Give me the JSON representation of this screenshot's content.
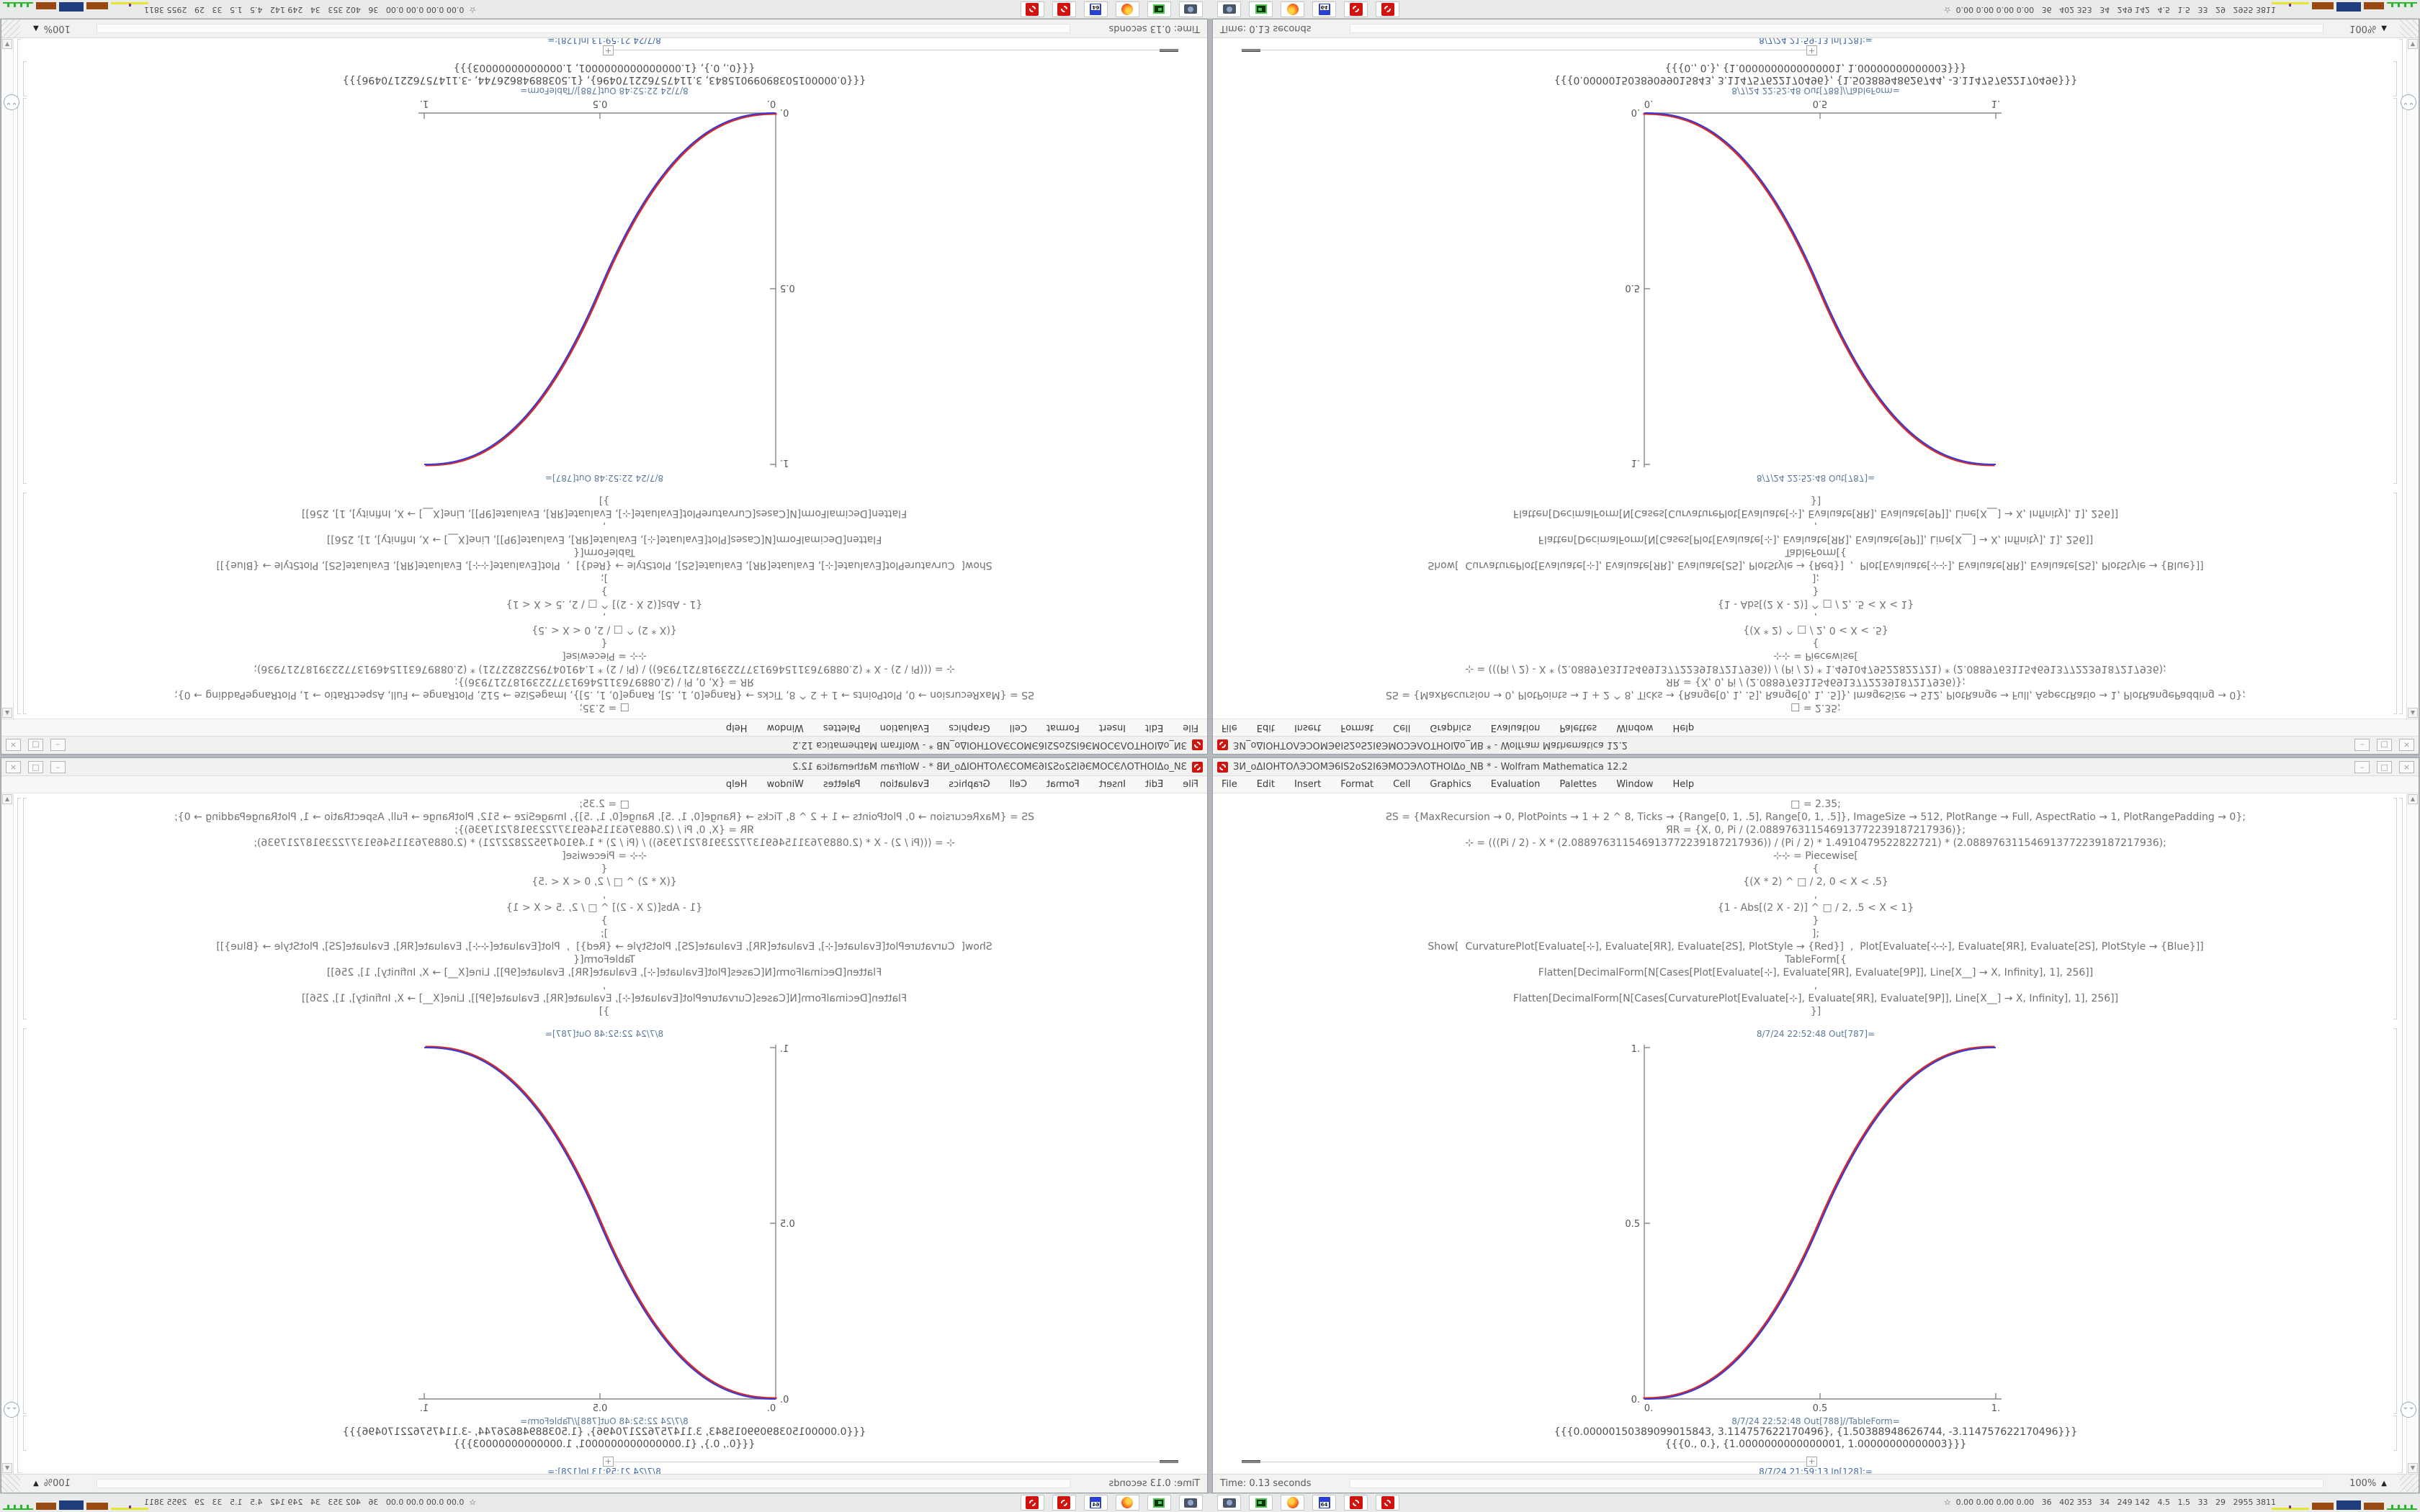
{
  "window": {
    "title": "ЗИ_оΔIOHTOΛЭƆOMЭ6IS2оS2I6ЭMOƆЭΛOTHOIΔо_NB * - Wolfram Mathematica 12.2",
    "window_buttons": {
      "minimize": "–",
      "maximize": "□",
      "close": "×"
    },
    "menu": [
      "File",
      "Edit",
      "Insert",
      "Format",
      "Cell",
      "Graphics",
      "Evaluation",
      "Palettes",
      "Window",
      "Help"
    ],
    "code_lines": [
      "□ = 2.35;",
      "ƧS = {MaxRecursion → 0, PlotPoints → 1 + 2 ^ 8, Ticks → {Range[0, 1, .5], Range[0, 1, .5]}, ImageSize → 512, PlotRange → Full, AspectRatio → 1, PlotRangePadding → 0};",
      "ЯR = {X, 0, Pi / (2.088976311546913772239187217936)};",
      "⊹ = (((Pi / 2) - X * (2.088976311546913772239187217936)) / (Pi / 2) * 1.4910479522822721) * (2.088976311546913772239187217936);",
      "⊹⊹ = Piecewise[",
      "{",
      "{(X * 2) ^ □ / 2, 0 < X < .5}",
      ",",
      "{1 - Abs[(2 X - 2)] ^ □ / 2, .5 < X < 1}",
      "}",
      "];",
      "Show[  CurvaturePlot[Evaluate[⊹], Evaluate[ЯR], Evaluate[ƧS], PlotStyle → {Red}]  ,  Plot[Evaluate[⊹⊹], Evaluate[ЯR], Evaluate[ƧS], PlotStyle → {Blue}]]",
      "TableForm[{",
      "Flatten[DecimalForm[N[Cases[Plot[Evaluate[⊹], Evaluate[ЯR], Evaluate[9P]], Line[X__] → X, Infinity], 1], 256]]",
      ",",
      "Flatten[DecimalForm[N[Cases[CurvaturePlot[Evaluate[⊹], Evaluate[ЯR], Evaluate[9P]], Line[X__] → X, Infinity], 1], 256]]",
      "}]"
    ],
    "out_label_plot": "8/7/24 22:52:48 Out[787]=",
    "out_label_table": "8/7/24 22:52:48 Out[788]//TableForm=",
    "out_rows": [
      "{{{0.00000150389099015843, 3.114757622170496}, {1.50388948626744, -3.114757622170496}}}",
      "{{{0., 0.}, {1.0000000000000001, 1.00000000000003}}}"
    ],
    "insert_plus": "+",
    "in_label": "8/7/24 21:59:13 In[128]:=",
    "status_time": "Time: 0.13 seconds",
    "zoom_level": "100%",
    "scroll_up_glyph": "▲",
    "scroll_down_glyph": "▼",
    "na_button_glyph": "⌄⌄",
    "zoom_tri_glyph": "▲"
  },
  "taskbar": {
    "stats": "☆  0.00 0.00 0.00 0.00   36   402 353   34   249 142   4.5   1.5   33   29   2955 3811",
    "floppy_label": "64",
    "icons": [
      "camera-icon",
      "monitor-icon",
      "firefox-icon",
      "floppy64-icon",
      "gear-icon",
      "gear-icon"
    ]
  },
  "chart_data": {
    "type": "line",
    "title": "",
    "xlabel": "",
    "ylabel": "",
    "xlim": [
      0,
      1
    ],
    "ylim": [
      0,
      1
    ],
    "grid": false,
    "legend_position": "none",
    "xtick_labels": [
      "0.",
      "0.5",
      "1."
    ],
    "ytick_labels": [
      "0.",
      "0.5",
      "1."
    ],
    "exponent": 2.35,
    "function": "y = (2x)^2.35 / 2 for 0 < x < 0.5 ; y = 1 - |2x-2|^2.35 / 2 for 0.5 < x < 1",
    "x": [
      0,
      0.1,
      0.2,
      0.3,
      0.4,
      0.5,
      0.6,
      0.7,
      0.8,
      0.9,
      1
    ],
    "series": [
      {
        "name": "CurvaturePlot (Red)",
        "color": "#d42a2a",
        "values": [
          0,
          0.0114,
          0.058,
          0.1506,
          0.296,
          0.5,
          0.704,
          0.8494,
          0.942,
          0.9886,
          1
        ]
      },
      {
        "name": "Plot (Blue)",
        "color": "#3a3ad4",
        "values": [
          0,
          0.0114,
          0.058,
          0.1506,
          0.296,
          0.5,
          0.704,
          0.8494,
          0.942,
          0.9886,
          1
        ]
      }
    ]
  }
}
